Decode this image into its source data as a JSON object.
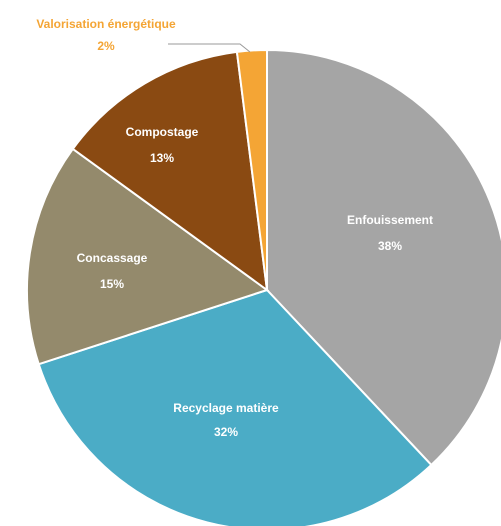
{
  "chart_data": {
    "type": "pie",
    "title": "",
    "slices": [
      {
        "label": "Enfouissement",
        "value": 38,
        "display": "38%",
        "color": "#a5a5a5",
        "label_color": "#ffffff"
      },
      {
        "label": "Recyclage matière",
        "value": 32,
        "display": "32%",
        "color": "#4bacc6",
        "label_color": "#ffffff"
      },
      {
        "label": "Concassage",
        "value": 15,
        "display": "15%",
        "color": "#948a6c",
        "label_color": "#ffffff"
      },
      {
        "label": "Compostage",
        "value": 13,
        "display": "13%",
        "color": "#8a4a12",
        "label_color": "#ffffff"
      },
      {
        "label": "Valorisation énergétique",
        "value": 2,
        "display": "2%",
        "color": "#f4a535",
        "label_color": "#f4a535"
      }
    ],
    "start_angle_deg": 0,
    "direction": "clockwise",
    "legend": "none"
  }
}
